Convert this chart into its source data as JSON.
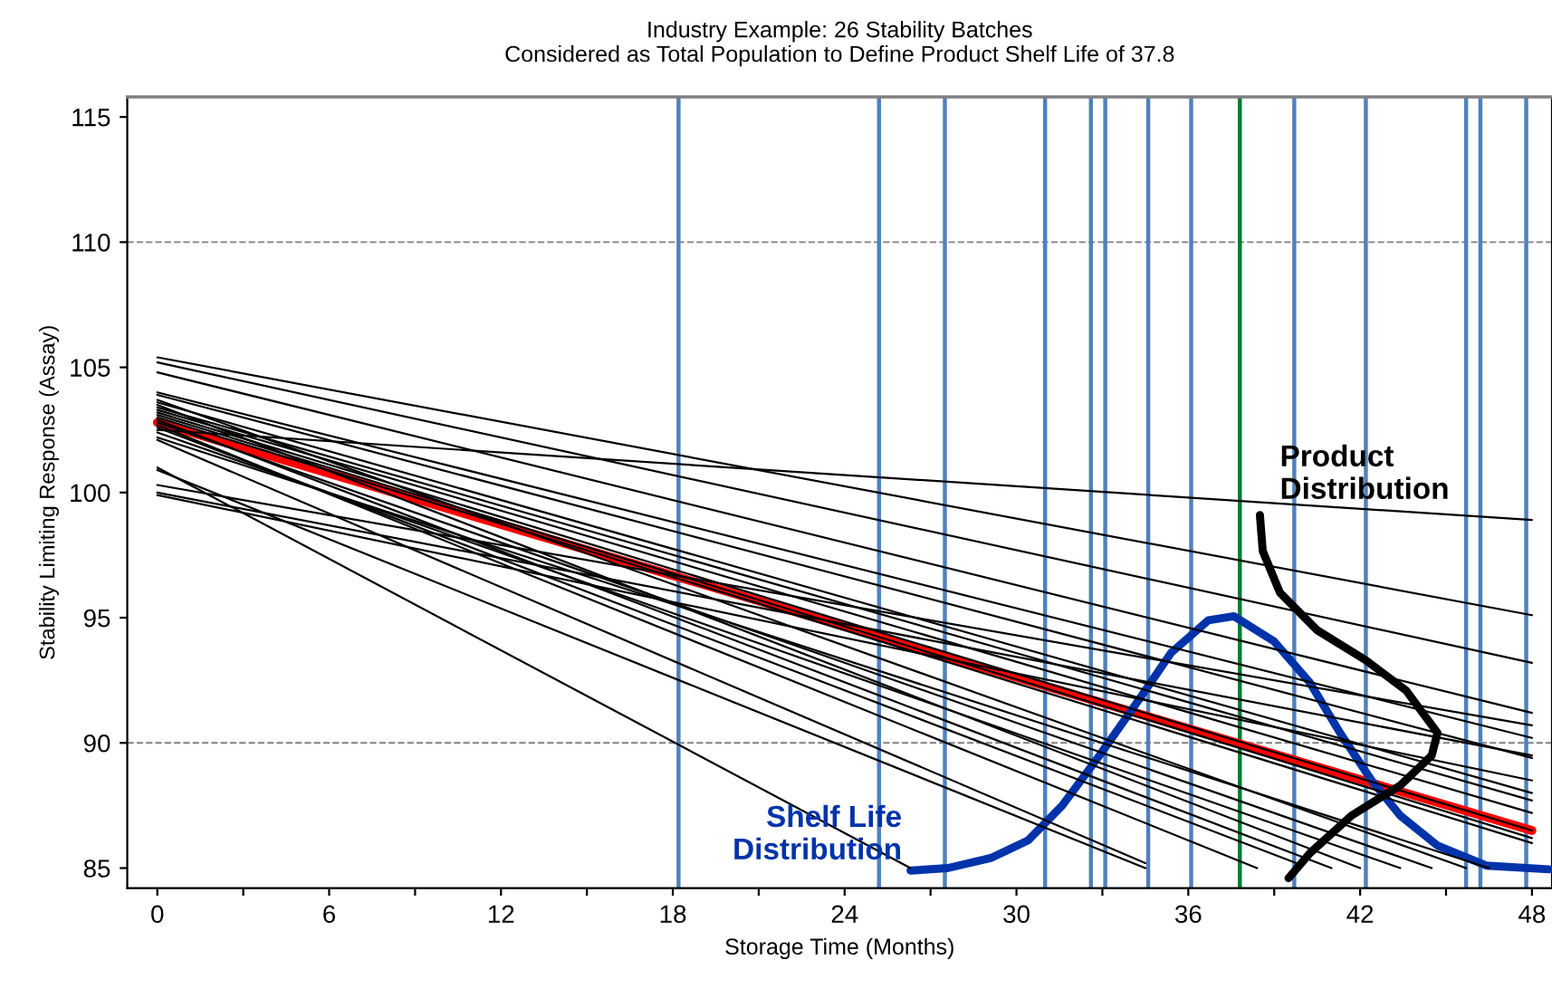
{
  "chart_data": {
    "type": "line",
    "title": "Industry Example: 26 Stability Batches\nConsidered as Total Population to Define Product Shelf Life of 37.8",
    "xlabel": "Storage Time (Months)",
    "ylabel": "Stability Limiting Response (Assay)",
    "xlim": [
      -1.05,
      48.7
    ],
    "ylim": [
      84.2,
      115.8
    ],
    "xticks": [
      0,
      {
        "value": 3,
        "label": null
      },
      6,
      {
        "value": 9,
        "label": null
      },
      12,
      {
        "value": 15,
        "label": null
      },
      18,
      {
        "value": 21,
        "label": null
      },
      24,
      {
        "value": 27,
        "label": null
      },
      30,
      {
        "value": 33,
        "label": null
      },
      36,
      {
        "value": 39,
        "label": null
      },
      42,
      {
        "value": 45,
        "label": null
      },
      48
    ],
    "yticks": [
      85,
      90,
      95,
      100,
      105,
      110,
      115
    ],
    "ref_lines": [
      {
        "axis": "y",
        "value": 90,
        "color": "#808080",
        "line_style": "dashed"
      },
      {
        "axis": "y",
        "value": 110,
        "color": "#808080",
        "line_style": "dashed"
      },
      {
        "axis": "x",
        "value": 18.2,
        "color": "#4f81bd"
      },
      {
        "axis": "x",
        "value": 25.2,
        "color": "#4f81bd"
      },
      {
        "axis": "x",
        "value": 27.5,
        "color": "#4f81bd"
      },
      {
        "axis": "x",
        "value": 31.0,
        "color": "#4f81bd"
      },
      {
        "axis": "x",
        "value": 32.6,
        "color": "#4f81bd"
      },
      {
        "axis": "x",
        "value": 33.1,
        "color": "#4f81bd"
      },
      {
        "axis": "x",
        "value": 34.6,
        "color": "#4f81bd"
      },
      {
        "axis": "x",
        "value": 36.1,
        "color": "#4f81bd"
      },
      {
        "axis": "x",
        "value": 39.7,
        "color": "#4f81bd"
      },
      {
        "axis": "x",
        "value": 42.2,
        "color": "#4f81bd"
      },
      {
        "axis": "x",
        "value": 45.7,
        "color": "#4f81bd"
      },
      {
        "axis": "x",
        "value": 46.2,
        "color": "#4f81bd"
      },
      {
        "axis": "x",
        "value": 47.8,
        "color": "#4f81bd"
      },
      {
        "axis": "x",
        "value": 37.8,
        "color": "#007a33"
      }
    ],
    "series": [
      {
        "color": "#000000",
        "x": [
          0,
          48
        ],
        "values": [
          102.5,
          98.9
        ]
      },
      {
        "color": "#000000",
        "x": [
          0,
          48
        ],
        "values": [
          105.4,
          95.1
        ]
      },
      {
        "color": "#000000",
        "x": [
          0,
          48
        ],
        "values": [
          105.2,
          93.2
        ]
      },
      {
        "color": "#000000",
        "x": [
          0,
          48
        ],
        "values": [
          104.8,
          91.2
        ]
      },
      {
        "color": "#000000",
        "x": [
          0,
          48
        ],
        "values": [
          100.3,
          90.7
        ]
      },
      {
        "color": "#000000",
        "x": [
          0,
          48
        ],
        "values": [
          104.0,
          90.2
        ]
      },
      {
        "color": "#000000",
        "x": [
          0,
          48
        ],
        "values": [
          100.0,
          89.5
        ]
      },
      {
        "color": "#000000",
        "x": [
          0,
          48
        ],
        "values": [
          103.9,
          89.4
        ]
      },
      {
        "color": "#000000",
        "x": [
          0,
          48
        ],
        "values": [
          99.9,
          88.5
        ]
      },
      {
        "color": "#000000",
        "x": [
          0,
          48
        ],
        "values": [
          103.6,
          88.0
        ]
      },
      {
        "color": "#000000",
        "x": [
          0,
          48
        ],
        "values": [
          103.4,
          87.7
        ]
      },
      {
        "color": "#000000",
        "x": [
          0,
          48
        ],
        "values": [
          103.3,
          87.2
        ]
      },
      {
        "color": "#000000",
        "x": [
          0,
          48
        ],
        "values": [
          103.2,
          86.5
        ]
      },
      {
        "color": "#000000",
        "x": [
          0,
          48
        ],
        "values": [
          103.1,
          86.2
        ]
      },
      {
        "color": "#000000",
        "x": [
          0,
          48
        ],
        "values": [
          103.0,
          86.0
        ]
      },
      {
        "color": "#000000",
        "x": [
          0,
          26.3
        ],
        "values": [
          101.0,
          85.0
        ]
      },
      {
        "color": "#000000",
        "x": [
          0,
          34.5
        ],
        "values": [
          100.9,
          85.0
        ]
      },
      {
        "color": "#000000",
        "x": [
          0,
          34.5
        ],
        "values": [
          102.1,
          85.2
        ]
      },
      {
        "color": "#000000",
        "x": [
          0,
          38.4
        ],
        "values": [
          102.7,
          85.0
        ]
      },
      {
        "color": "#000000",
        "x": [
          0,
          40.0
        ],
        "values": [
          102.6,
          85.1
        ]
      },
      {
        "color": "#000000",
        "x": [
          0,
          41.0
        ],
        "values": [
          102.9,
          85.0
        ]
      },
      {
        "color": "#000000",
        "x": [
          0,
          42.0
        ],
        "values": [
          103.5,
          85.0
        ]
      },
      {
        "color": "#000000",
        "x": [
          0,
          43.4
        ],
        "values": [
          102.4,
          85.0
        ]
      },
      {
        "color": "#000000",
        "x": [
          0,
          44.5
        ],
        "values": [
          102.8,
          85.0
        ]
      },
      {
        "color": "#000000",
        "x": [
          0,
          45.7
        ],
        "values": [
          103.7,
          85.0
        ]
      },
      {
        "color": "#000000",
        "x": [
          0,
          46.5
        ],
        "values": [
          102.2,
          85.0
        ]
      },
      {
        "color": "#ff0000",
        "x": [
          0,
          48
        ],
        "values": [
          102.8,
          86.5
        ]
      },
      {
        "name": "Shelf Life\nDistribution",
        "color": "#0033aa",
        "x": [
          26.3,
          27.6,
          29.1,
          30.4,
          31.6,
          32.9,
          34.2,
          35.4,
          36.7,
          37.6,
          39.0,
          40.25,
          41.3,
          42.4,
          43.4,
          44.7,
          46.4,
          48.6
        ],
        "values": [
          84.9,
          85.0,
          85.4,
          86.1,
          87.5,
          89.5,
          91.6,
          93.6,
          94.9,
          95.06,
          94.05,
          92.4,
          90.4,
          88.5,
          87.1,
          85.9,
          85.1,
          84.95
        ]
      },
      {
        "name": "Product\nDistribution",
        "color": "#000000",
        "x": [
          38.5,
          38.6,
          39.2,
          40.5,
          42.2,
          43.6,
          44.7,
          44.5,
          43.4,
          41.7,
          40.25,
          39.5
        ],
        "values": [
          99.1,
          97.66,
          96.0,
          94.5,
          93.3,
          92.1,
          90.4,
          89.5,
          88.3,
          87.1,
          85.6,
          84.6
        ]
      }
    ]
  }
}
